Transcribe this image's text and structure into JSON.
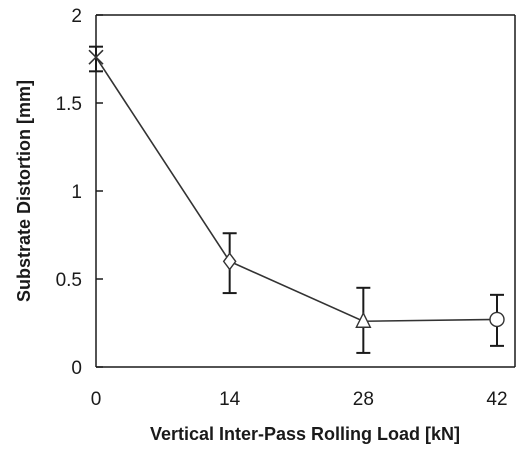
{
  "chart_data": {
    "type": "line",
    "title": "",
    "xlabel": "Vertical Inter-Pass Rolling Load [kN]",
    "ylabel": "Substrate Distortion [mm]",
    "xlim": [
      0,
      42
    ],
    "ylim": [
      0,
      2
    ],
    "x_ticks": [
      "0",
      "14",
      "28",
      "42"
    ],
    "y_ticks": [
      "0",
      "0.5",
      "1",
      "1.5",
      "2"
    ],
    "grid": false,
    "legend": "none",
    "series": [
      {
        "line_color": "#333333",
        "points": [
          {
            "x": 0,
            "y": 1.76,
            "err_low": 1.68,
            "err_high": 1.82,
            "marker": "x-cross"
          },
          {
            "x": 14,
            "y": 0.6,
            "err_low": 0.42,
            "err_high": 0.76,
            "marker": "diamond"
          },
          {
            "x": 28,
            "y": 0.26,
            "err_low": 0.08,
            "err_high": 0.45,
            "marker": "triangle"
          },
          {
            "x": 42,
            "y": 0.27,
            "err_low": 0.12,
            "err_high": 0.41,
            "marker": "circle"
          }
        ]
      }
    ]
  }
}
